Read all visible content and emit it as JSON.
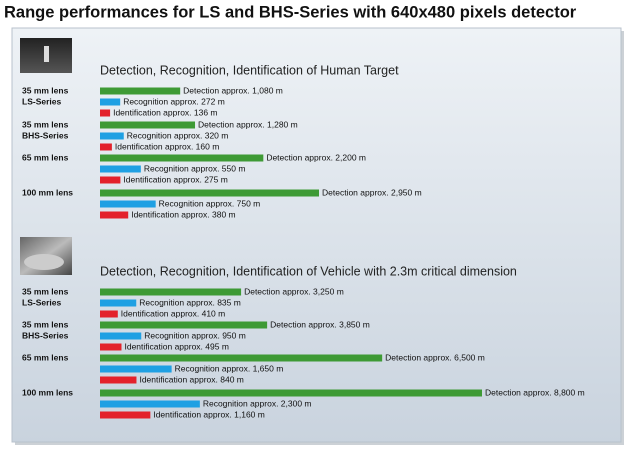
{
  "title": "Range performances for LS and BHS-Series with 640x480 pixels detector",
  "chart_data": [
    {
      "type": "bar",
      "title": "Detection, Recognition, Identification of Human Target",
      "colors": [
        "#3e9a35",
        "#1fa0e3",
        "#e3212b"
      ],
      "groups": [
        {
          "lens": "35 mm lens",
          "series": "LS-Series",
          "values": [
            1080,
            272,
            136
          ],
          "value_labels": [
            "Detection approx. 1,080 m",
            "Recognition approx. 272 m",
            "Identification approx. 136 m"
          ]
        },
        {
          "lens": "35 mm lens",
          "series": "BHS-Series",
          "values": [
            1280,
            320,
            160
          ],
          "value_labels": [
            "Detection approx. 1,280 m",
            "Recognition approx. 320 m",
            "Identification approx. 160 m"
          ]
        },
        {
          "lens": "65 mm lens",
          "values": [
            2200,
            550,
            275
          ],
          "value_labels": [
            "Detection approx. 2,200 m",
            "Recognition approx. 550 m",
            "Identification approx. 275 m"
          ]
        },
        {
          "lens": "100 mm lens",
          "values": [
            2950,
            750,
            380
          ],
          "value_labels": [
            "Detection approx. 2,950 m",
            "Recognition approx. 750 m",
            "Identification approx. 380 m"
          ]
        }
      ]
    },
    {
      "type": "bar",
      "title": "Detection, Recognition, Identification of Vehicle with 2.3m critical dimension",
      "colors": [
        "#3e9a35",
        "#1fa0e3",
        "#e3212b"
      ],
      "groups": [
        {
          "lens": "35 mm lens",
          "series": "LS-Series",
          "values": [
            3250,
            835,
            410
          ],
          "value_labels": [
            "Detection approx. 3,250 m",
            "Recognition approx. 835 m",
            "Identification approx. 410 m"
          ]
        },
        {
          "lens": "35 mm lens",
          "series": "BHS-Series",
          "values": [
            3850,
            950,
            495
          ],
          "value_labels": [
            "Detection approx. 3,850 m",
            "Recognition approx. 950 m",
            "Identification approx. 495 m"
          ]
        },
        {
          "lens": "65 mm lens",
          "values": [
            6500,
            1650,
            840
          ],
          "value_labels": [
            "Detection approx. 6,500 m",
            "Recognition approx. 1,650 m",
            "Identification approx. 840 m"
          ]
        },
        {
          "lens": "100 mm lens",
          "values": [
            8800,
            2300,
            1160
          ],
          "value_labels": [
            "Detection approx. 8,800 m",
            "Recognition approx. 2,300 m",
            "Identification approx. 1,160 m"
          ]
        }
      ]
    }
  ]
}
